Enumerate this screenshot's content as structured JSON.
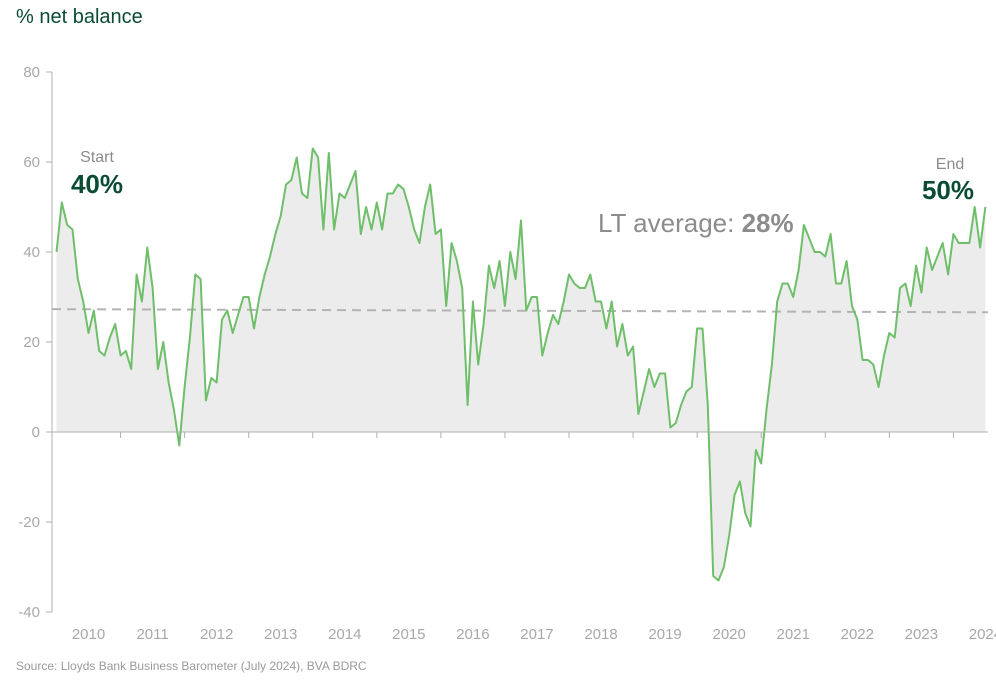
{
  "chart_data": {
    "type": "area",
    "title": "",
    "ylabel": "% net balance",
    "xlabel": "",
    "source": "Source: Lloyds Bank Business Barometer (July 2024), BVA BDRC",
    "ylim": [
      -40,
      80
    ],
    "yticks": [
      80,
      60,
      40,
      20,
      0,
      -20,
      -40
    ],
    "yticks_labels": [
      "80",
      "60",
      "40",
      "20",
      "0",
      "-20",
      "-40"
    ],
    "xlim": [
      2009.93,
      2024.54
    ],
    "xticks": [
      2010,
      2011,
      2012,
      2013,
      2014,
      2015,
      2016,
      2017,
      2018,
      2019,
      2020,
      2021,
      2022,
      2023,
      2024
    ],
    "grid": false,
    "legend": "none",
    "colors": {
      "line": "#6fbf6a",
      "fill": "#ececec",
      "average": "#b3b3b3",
      "axis": "#b0b0b0",
      "accent": "#0a4b33"
    },
    "long_term_average": {
      "label": "LT average: ",
      "value_label": "28%",
      "start_value": 27.3,
      "end_value": 26.6
    },
    "annotations": {
      "start": {
        "label": "Start",
        "value": "40%"
      },
      "end": {
        "label": "End",
        "value": "50%"
      }
    },
    "series": [
      {
        "x": [
          2010.0,
          2010.083,
          2010.167,
          2010.25,
          2010.333,
          2010.417,
          2010.5,
          2010.583,
          2010.667,
          2010.75,
          2010.833,
          2010.917,
          2011.0,
          2011.083,
          2011.167,
          2011.25,
          2011.333,
          2011.417,
          2011.5,
          2011.583,
          2011.667,
          2011.75,
          2011.833,
          2011.917,
          2012.0,
          2012.083,
          2012.167,
          2012.25,
          2012.333,
          2012.417,
          2012.5,
          2012.583,
          2012.667,
          2012.75,
          2012.833,
          2012.917,
          2013.0,
          2013.083,
          2013.167,
          2013.25,
          2013.333,
          2013.417,
          2013.5,
          2013.583,
          2013.667,
          2013.75,
          2013.833,
          2013.917,
          2014.0,
          2014.083,
          2014.167,
          2014.25,
          2014.333,
          2014.417,
          2014.5,
          2014.583,
          2014.667,
          2014.75,
          2014.833,
          2014.917,
          2015.0,
          2015.083,
          2015.167,
          2015.25,
          2015.333,
          2015.417,
          2015.5,
          2015.583,
          2015.667,
          2015.75,
          2015.833,
          2015.917,
          2016.0,
          2016.083,
          2016.167,
          2016.25,
          2016.333,
          2016.417,
          2016.5,
          2016.583,
          2016.667,
          2016.75,
          2016.833,
          2016.917,
          2017.0,
          2017.083,
          2017.167,
          2017.25,
          2017.333,
          2017.417,
          2017.5,
          2017.583,
          2017.667,
          2017.75,
          2017.833,
          2017.917,
          2018.0,
          2018.083,
          2018.167,
          2018.25,
          2018.333,
          2018.417,
          2018.5,
          2018.583,
          2018.667,
          2018.75,
          2018.833,
          2018.917,
          2019.0,
          2019.083,
          2019.167,
          2019.25,
          2019.333,
          2019.417,
          2019.5,
          2019.583,
          2019.667,
          2019.75,
          2019.833,
          2019.917,
          2020.0,
          2020.083,
          2020.167,
          2020.25,
          2020.333,
          2020.417,
          2020.5,
          2020.583,
          2020.667,
          2020.75,
          2020.833,
          2020.917,
          2021.0,
          2021.083,
          2021.167,
          2021.25,
          2021.333,
          2021.417,
          2021.5,
          2021.583,
          2021.667,
          2021.75,
          2021.833,
          2021.917,
          2022.0,
          2022.083,
          2022.167,
          2022.25,
          2022.333,
          2022.417,
          2022.5,
          2022.583,
          2022.667,
          2022.75,
          2022.833,
          2022.917,
          2023.0,
          2023.083,
          2023.167,
          2023.25,
          2023.333,
          2023.417,
          2023.5,
          2023.583,
          2023.667,
          2023.75,
          2023.833,
          2023.917,
          2024.0,
          2024.083,
          2024.167,
          2024.25,
          2024.333,
          2024.417,
          2024.5
        ],
        "values": [
          40,
          51,
          46,
          45,
          34,
          29,
          22,
          27,
          18,
          17,
          21,
          24,
          17,
          18,
          14,
          35,
          29,
          41,
          32,
          14,
          20,
          11,
          5,
          -3,
          10,
          21,
          35,
          34,
          7,
          12,
          11,
          25,
          27,
          22,
          26,
          30,
          30,
          23,
          30,
          35,
          39,
          44,
          48,
          55,
          56,
          61,
          53,
          52,
          63,
          61,
          45,
          62,
          45,
          53,
          52,
          55,
          58,
          44,
          50,
          45,
          51,
          45,
          53,
          53,
          55,
          54,
          50,
          45,
          42,
          50,
          55,
          44,
          45,
          28,
          42,
          38,
          32,
          6,
          29,
          15,
          24,
          37,
          32,
          38,
          28,
          40,
          34,
          47,
          27,
          30,
          30,
          17,
          22,
          26,
          24,
          29,
          35,
          33,
          32,
          32,
          35,
          29,
          29,
          23,
          29,
          19,
          24,
          17,
          19,
          4,
          9,
          14,
          10,
          13,
          13,
          1,
          2,
          6,
          9,
          10,
          23,
          23,
          6,
          -32,
          -33,
          -30,
          -23,
          -14,
          -11,
          -18,
          -21,
          -4,
          -7,
          5,
          15,
          29,
          33,
          33,
          30,
          36,
          46,
          43,
          40,
          40,
          39,
          44,
          33,
          33,
          38,
          28,
          25,
          16,
          16,
          15,
          10,
          17,
          22,
          21,
          32,
          33,
          28,
          37,
          31,
          41,
          36,
          39,
          42,
          35,
          44,
          42,
          42,
          42,
          50,
          41,
          50
        ]
      }
    ]
  }
}
